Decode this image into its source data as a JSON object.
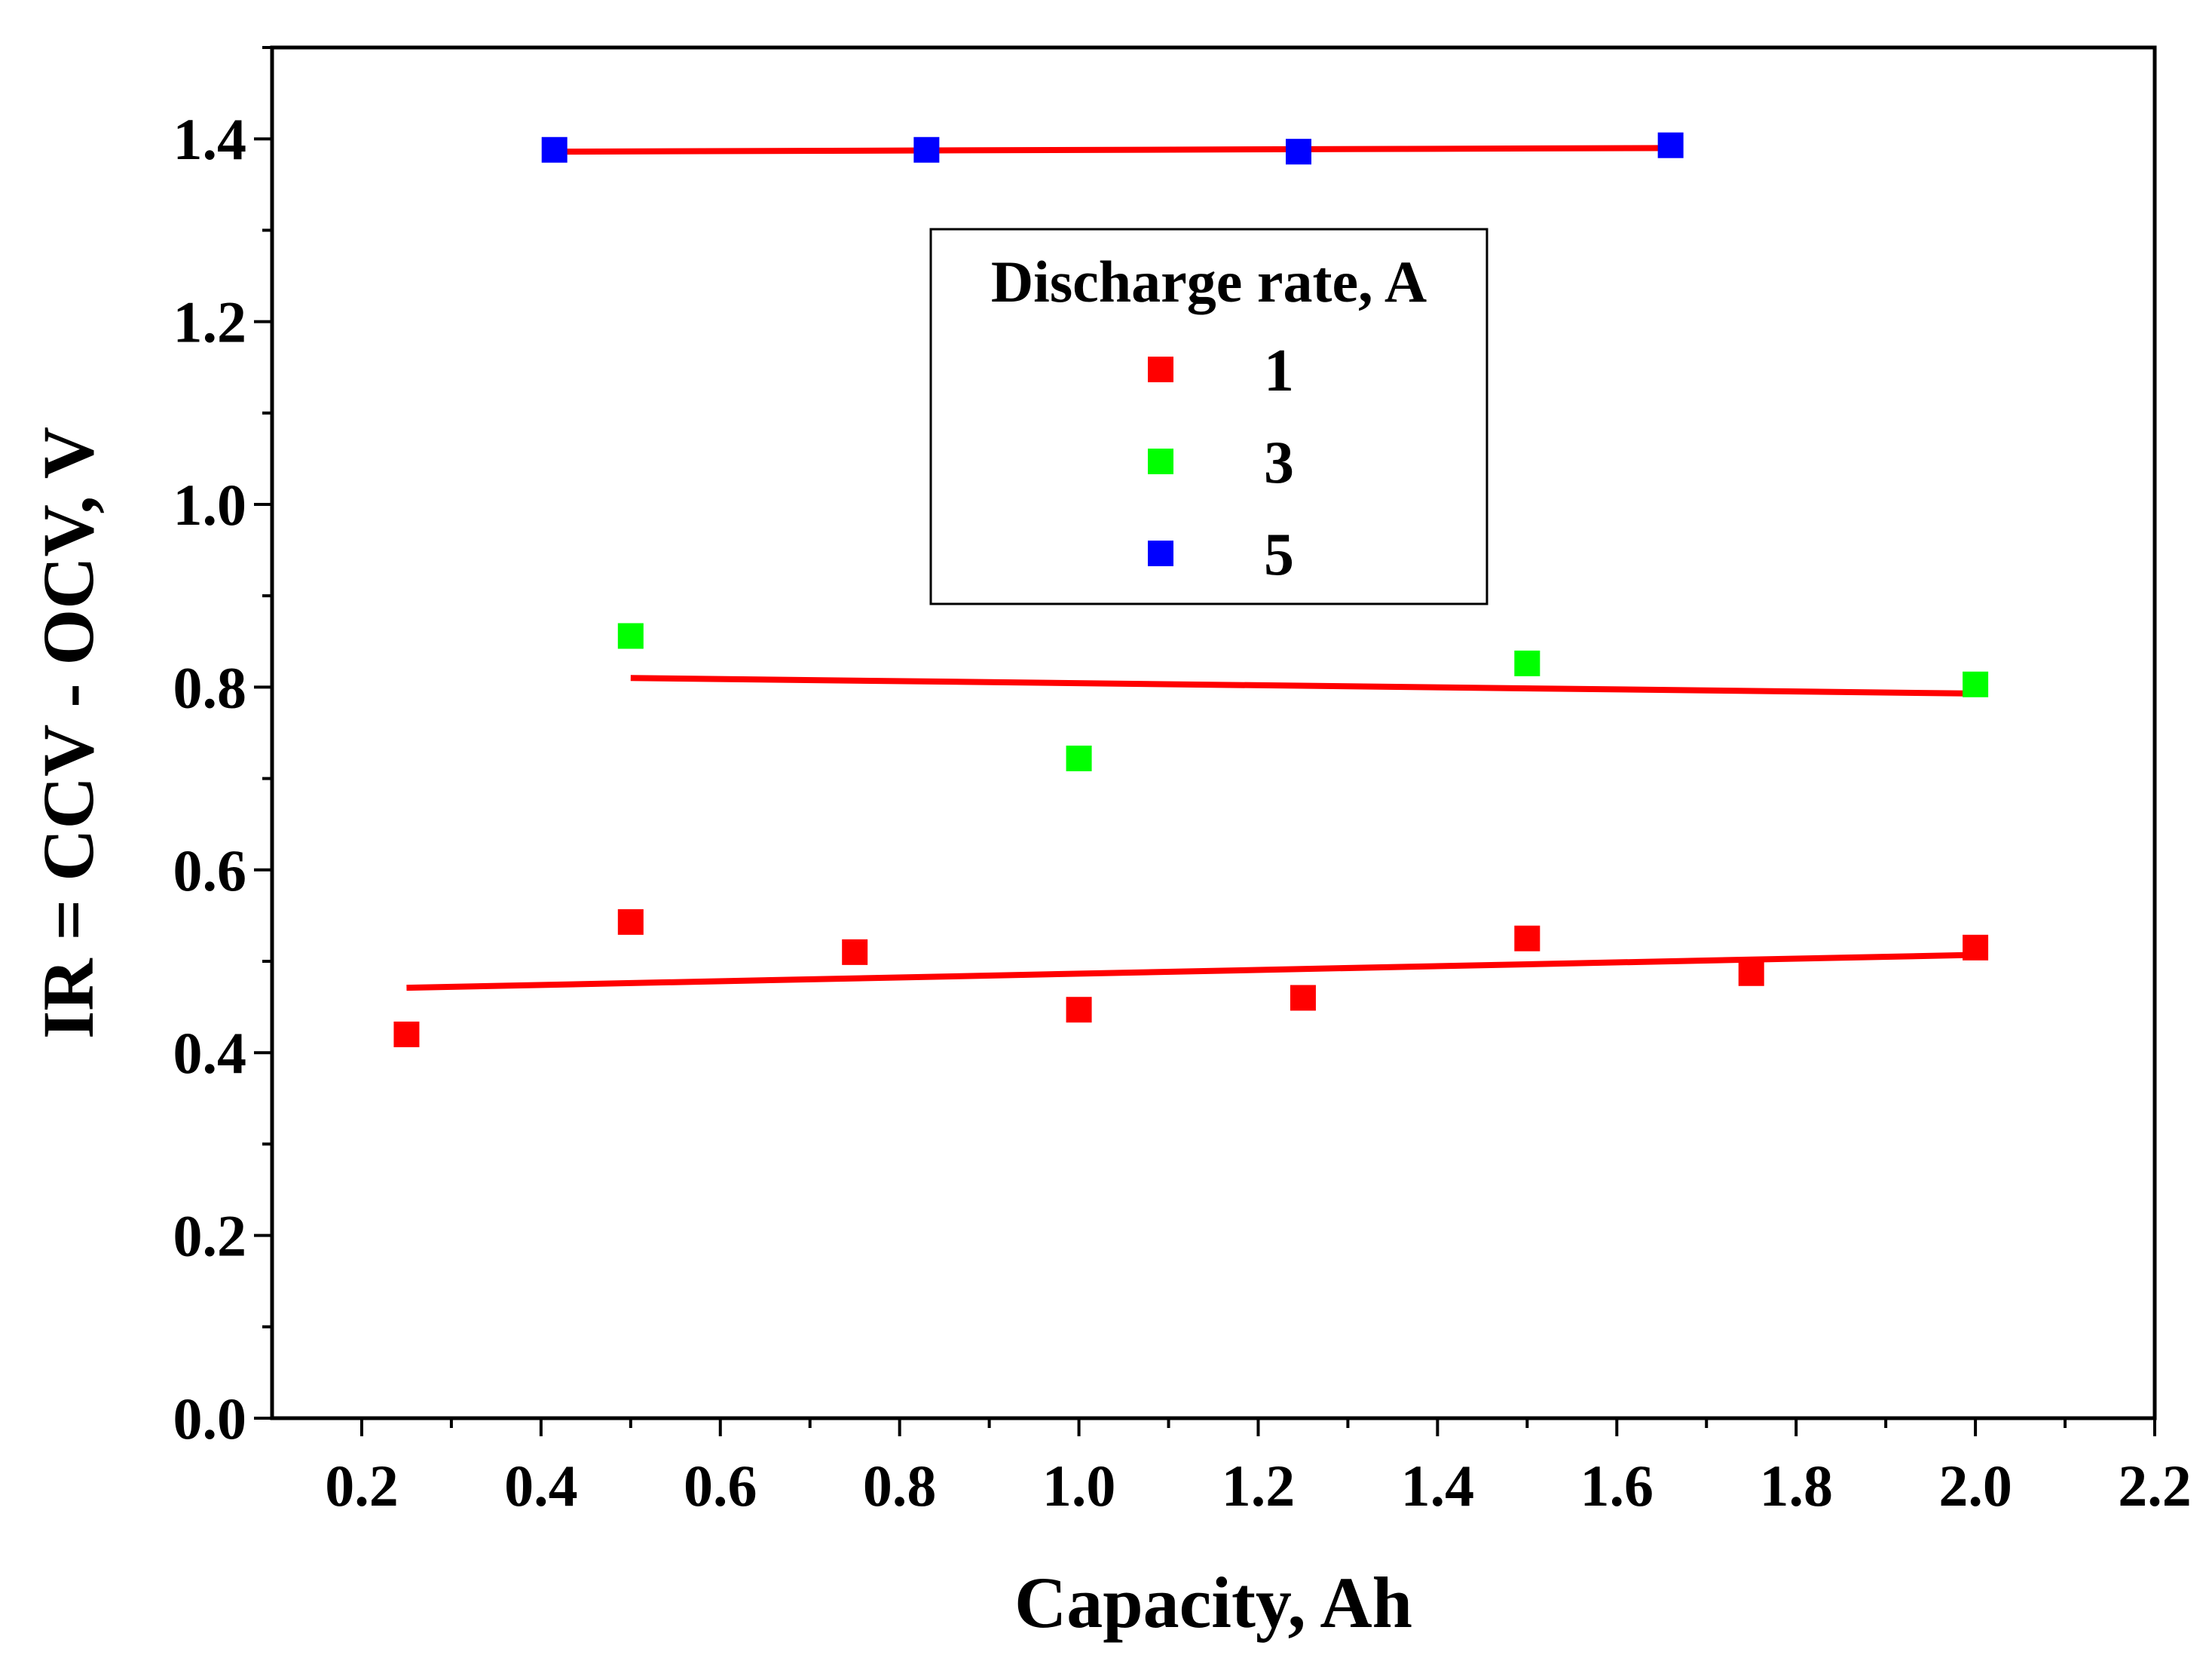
{
  "chart_data": {
    "type": "scatter",
    "title": "",
    "xlabel": "Capacity, Ah",
    "ylabel": "IR = CCV - OCV, V",
    "xlim": [
      0.1,
      2.2
    ],
    "ylim": [
      0.0,
      1.5
    ],
    "xticks": [
      "0.2",
      "0.4",
      "0.6",
      "0.8",
      "1.0",
      "1.2",
      "1.4",
      "1.6",
      "1.8",
      "2.0",
      "2.2"
    ],
    "yticks": [
      "0.0",
      "0.2",
      "0.4",
      "0.6",
      "0.8",
      "1.0",
      "1.2",
      "1.4"
    ],
    "legend": {
      "title": "Discharge rate, A",
      "position": "top-center"
    },
    "series": [
      {
        "name": "1",
        "color": "#ff0000",
        "x": [
          0.25,
          0.5,
          0.75,
          1.0,
          1.25,
          1.5,
          1.75,
          2.0
        ],
        "y": [
          0.42,
          0.543,
          0.51,
          0.447,
          0.46,
          0.525,
          0.487,
          0.515
        ],
        "fit": {
          "x": [
            0.25,
            2.0
          ],
          "y": [
            0.471,
            0.507
          ],
          "color": "#ff0000"
        }
      },
      {
        "name": "3",
        "color": "#00ff00",
        "x": [
          0.5,
          1.0,
          1.5,
          2.0
        ],
        "y": [
          0.856,
          0.722,
          0.826,
          0.803
        ],
        "fit": {
          "x": [
            0.5,
            2.0
          ],
          "y": [
            0.81,
            0.793
          ],
          "color": "#ff0000"
        }
      },
      {
        "name": "5",
        "color": "#0000ff",
        "x": [
          0.415,
          0.83,
          1.245,
          1.66
        ],
        "y": [
          1.388,
          1.388,
          1.386,
          1.393
        ],
        "fit": {
          "x": [
            0.415,
            1.66
          ],
          "y": [
            1.386,
            1.39
          ],
          "color": "#ff0000"
        }
      }
    ]
  }
}
